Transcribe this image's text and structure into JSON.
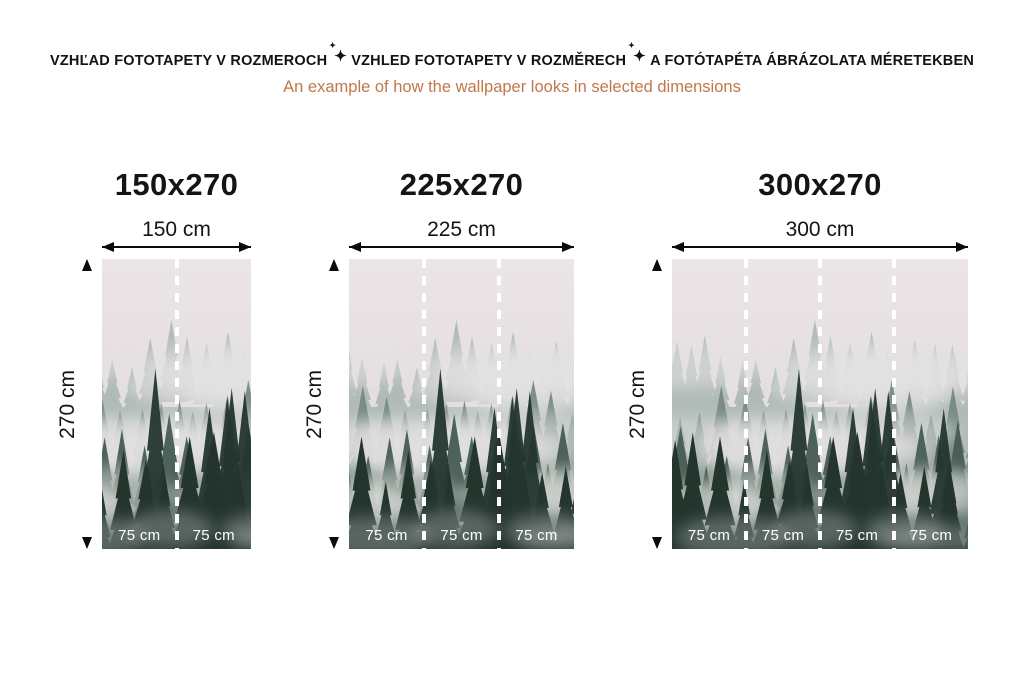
{
  "header": {
    "title_parts": [
      "VZHĽAD FOTOTAPETY V ROZMEROCH",
      "VZHLED FOTOTAPETY V ROZMĚRECH",
      "A FOTÓTAPÉTA ÁBRÁZOLATA MÉRETEKBEN"
    ],
    "subtitle": "An example of how the wallpaper looks in selected dimensions",
    "subtitle_color": "#c0784a",
    "title_color": "#121212"
  },
  "icons": {
    "sparkle": "✦"
  },
  "panels": [
    {
      "title": "150x270",
      "width_label": "150 cm",
      "height_label": "270 cm",
      "segments": [
        "75 cm",
        "75 cm"
      ]
    },
    {
      "title": "225x270",
      "width_label": "225 cm",
      "height_label": "270 cm",
      "segments": [
        "75 cm",
        "75 cm",
        "75 cm"
      ]
    },
    {
      "title": "300x270",
      "width_label": "300 cm",
      "height_label": "270 cm",
      "segments": [
        "75 cm",
        "75 cm",
        "75 cm",
        "75 cm"
      ]
    }
  ],
  "wallpaper": {
    "description": "misty foggy pine forest wallpaper",
    "colors": {
      "sky_top": "#ece5e8",
      "sky_bottom": "#d9d3d7",
      "far": "#a7b5ae",
      "mid": "#73887f",
      "near": "#475d53",
      "front": "#24352e",
      "fog": "#e3e2e1"
    },
    "seam_color": "#ffffff",
    "segment_label_color": "#ffffff"
  }
}
